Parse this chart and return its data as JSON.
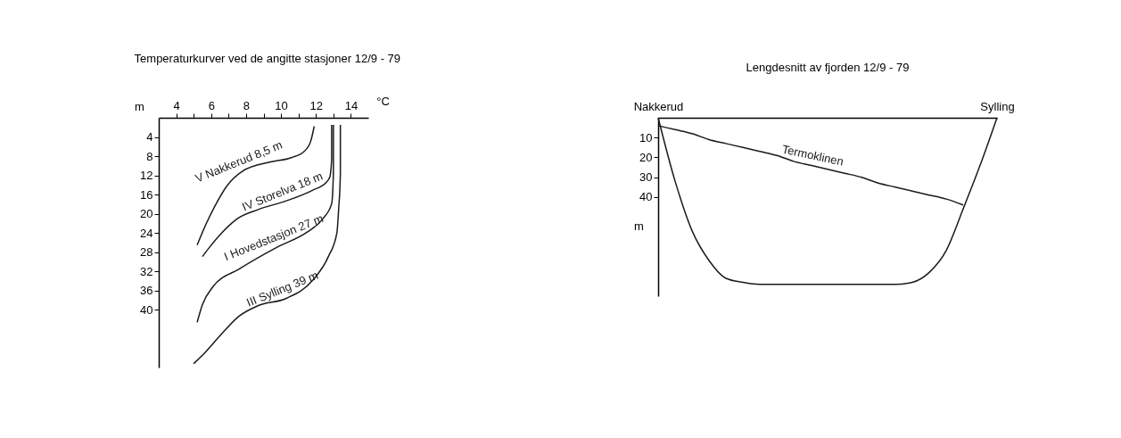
{
  "chart_data": [
    {
      "type": "line",
      "title": "Temperaturkurver ved de angitte stasjoner 12/9 - 79",
      "xlabel": "°C",
      "ylabel": "m",
      "xlim": [
        3,
        15
      ],
      "xticks": [
        4,
        {
          "value": 5,
          "label": null
        },
        6,
        {
          "value": 7,
          "label": null
        },
        8,
        {
          "value": 9,
          "label": null
        },
        10,
        {
          "value": 11,
          "label": null
        },
        12,
        {
          "value": 13,
          "label": null
        },
        14
      ],
      "ylim": [
        52,
        0
      ],
      "yticks": [
        4,
        8,
        12,
        16,
        20,
        24,
        28,
        32,
        36,
        40
      ],
      "series": [
        {
          "name": "V Nakkerud 8,5 m",
          "color": "#1a1a1a",
          "x": [
            11.9,
            11.7,
            11.3,
            10.6,
            9.4,
            7.8,
            6.9,
            6.2,
            5.7,
            5.2
          ],
          "values": [
            1.8,
            4.9,
            7.1,
            8.3,
            9.2,
            11.1,
            14.2,
            18.5,
            22.2,
            26.5
          ]
        },
        {
          "name": "IV Storelva 18 m",
          "color": "#1a1a1a",
          "x": [
            12.9,
            12.9,
            12.8,
            12.6,
            11.8,
            10.3,
            8.7,
            7.5,
            6.6,
            5.9,
            5.5
          ],
          "values": [
            1.5,
            8.6,
            12.3,
            13.4,
            15.1,
            17.3,
            19.1,
            21,
            24,
            27,
            28.9
          ]
        },
        {
          "name": "I Hovedstasjon 27 m",
          "color": "#1a1a1a",
          "x": [
            13,
            13,
            12.9,
            12.4,
            11.5,
            9.8,
            7.6,
            6.1,
            5.5,
            5.2
          ],
          "values": [
            1.5,
            11.7,
            17.9,
            21,
            23.8,
            26.9,
            31.5,
            35.2,
            38.9,
            42.6
          ]
        },
        {
          "name": "III Sylling 39 m",
          "color": "#1a1a1a",
          "x": [
            13.4,
            13.4,
            13.3,
            13.2,
            12.7,
            11.8,
            10.3,
            8.7,
            7.6,
            6.6,
            5.7,
            5
          ],
          "values": [
            1.5,
            11.7,
            19.1,
            24,
            29,
            33.9,
            37.6,
            39.1,
            41.3,
            45,
            48.7,
            51.2
          ]
        }
      ]
    },
    {
      "type": "line",
      "title": "Lengdesnitt av fjorden 12/9 - 79",
      "ylabel": "m",
      "ylim": [
        90,
        0
      ],
      "yticks": [
        10,
        20,
        30,
        40
      ],
      "categories": [
        "Nakkerud",
        null,
        null,
        null,
        null,
        null,
        null,
        null,
        null,
        null,
        null,
        null,
        null,
        null,
        null,
        null,
        null,
        null,
        null,
        null,
        "Sylling"
      ],
      "series": [
        {
          "name": "Termoklinen",
          "color": "#1a1a1a",
          "values": [
            4,
            6,
            8,
            11,
            13,
            15,
            17,
            19,
            22,
            24,
            26,
            28,
            30,
            33,
            35,
            37,
            39,
            41,
            44,
            null,
            null
          ]
        },
        {
          "color": "#1a1a1a",
          "values": [
            0,
            32,
            57,
            72,
            81,
            83,
            84,
            84,
            84,
            84,
            84,
            84,
            84,
            84,
            84,
            83,
            78,
            67,
            46,
            24,
            0
          ]
        }
      ]
    }
  ]
}
